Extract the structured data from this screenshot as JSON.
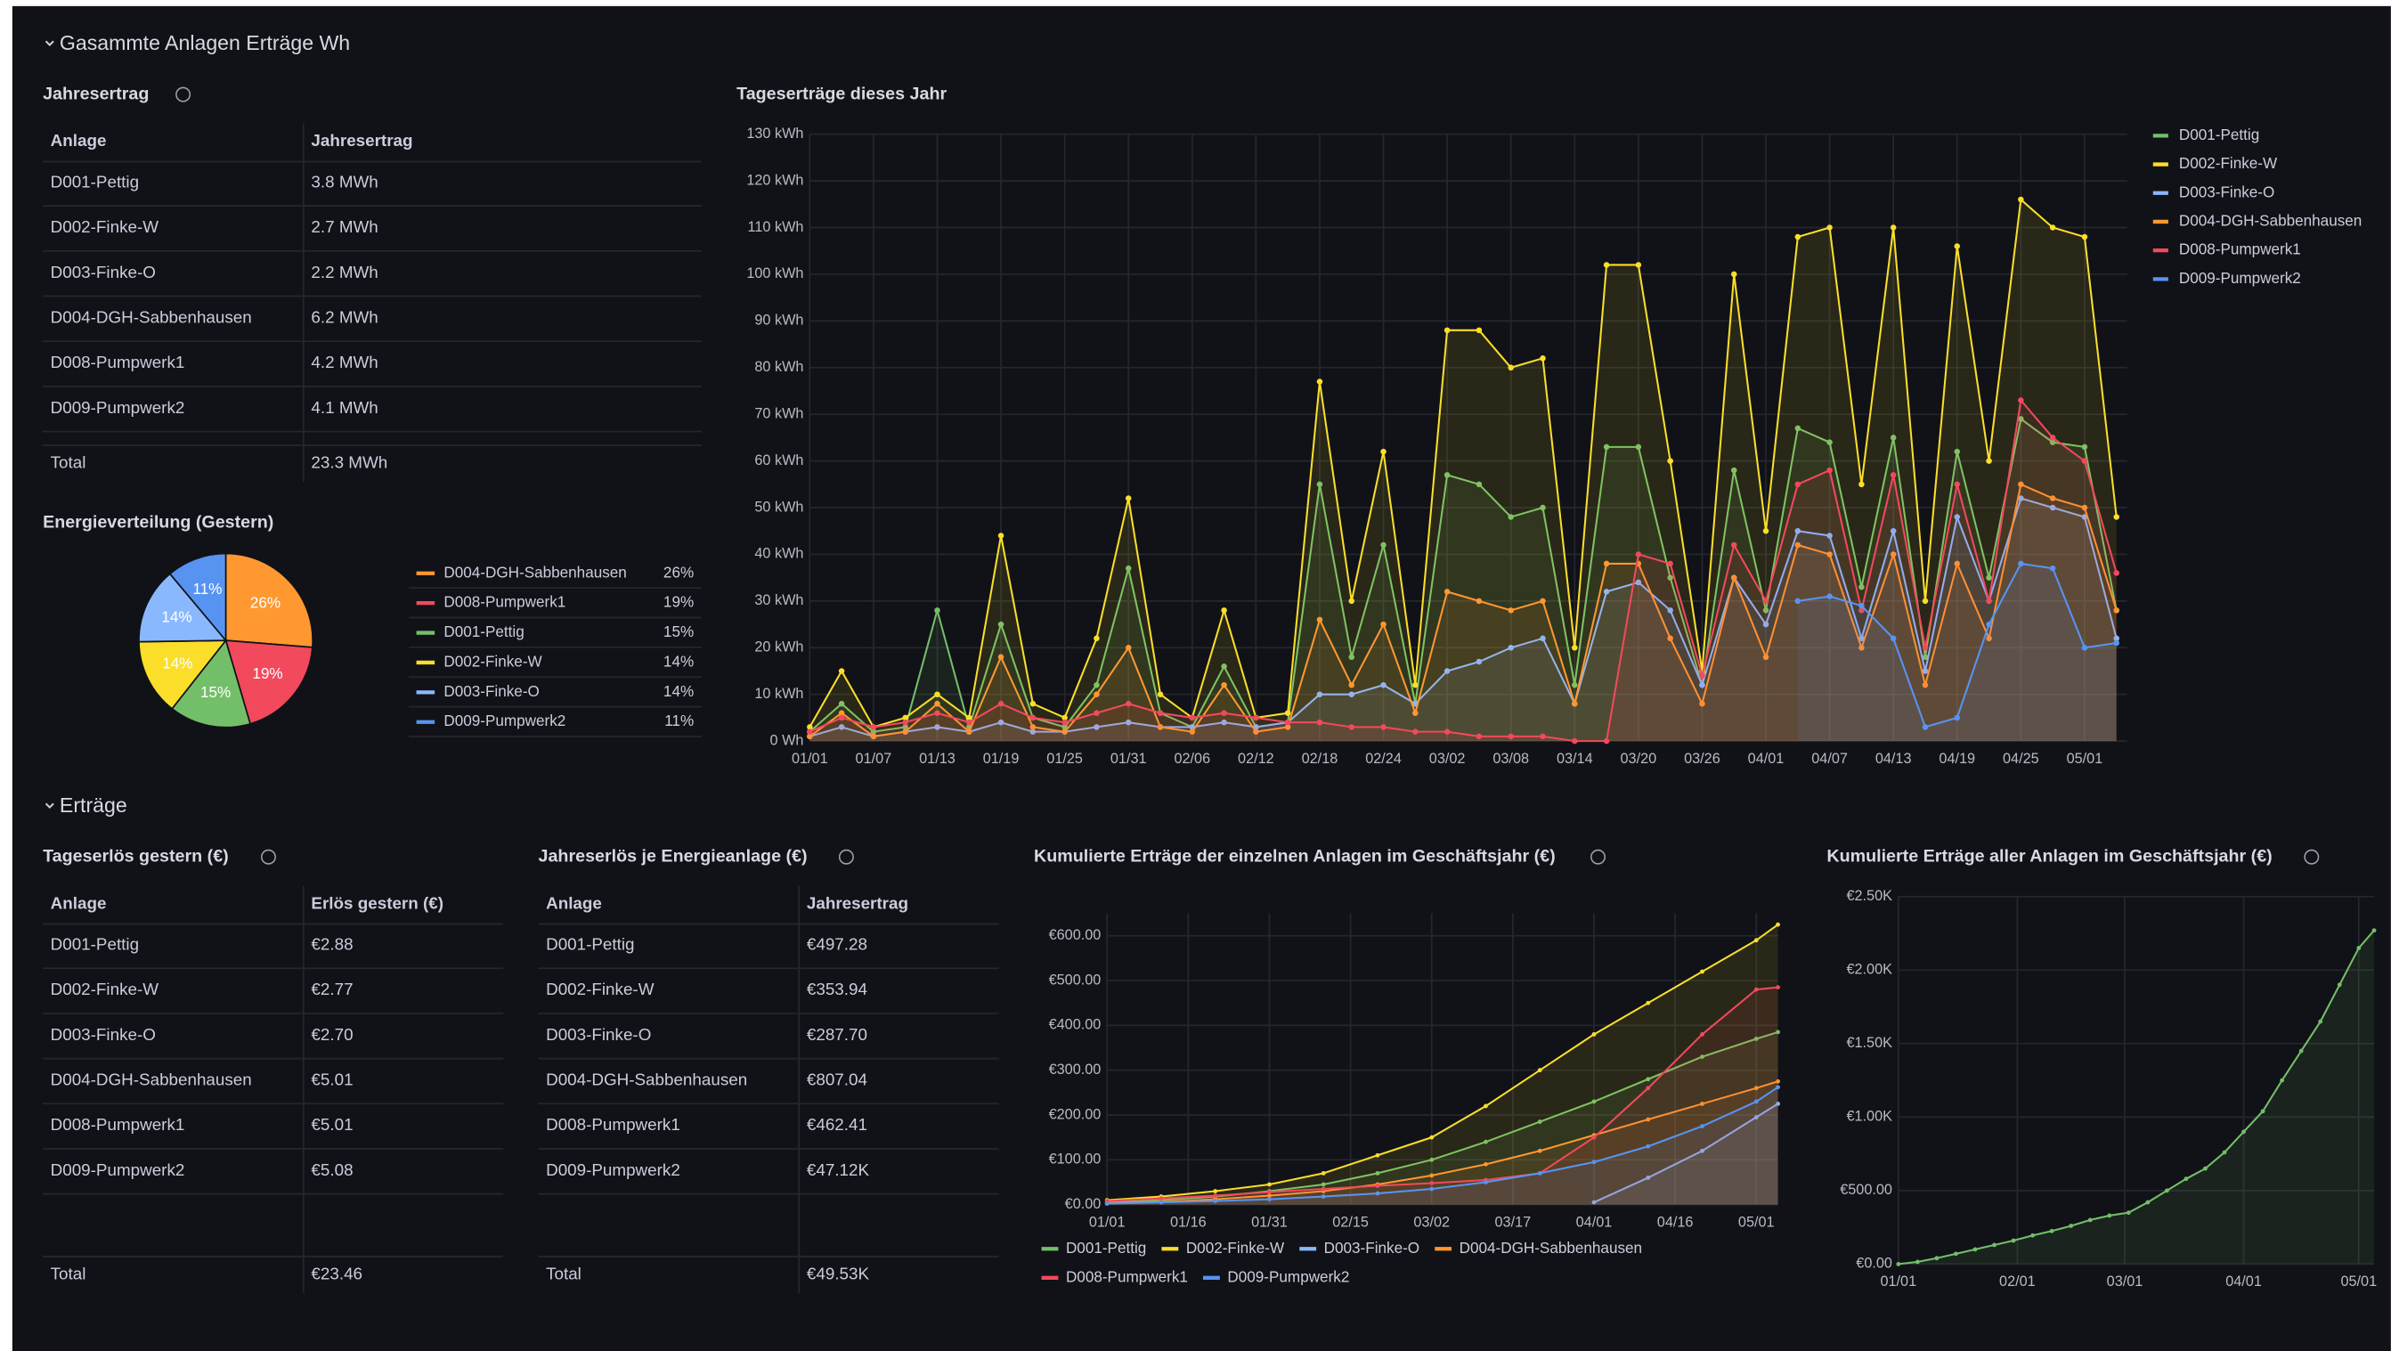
{
  "sections": [
    {
      "title": "Gasammte Anlagen Erträge Wh"
    },
    {
      "title": "Erträge"
    }
  ],
  "jahresertrag": {
    "title": "Jahresertrag",
    "header": [
      "Anlage",
      "Jahresertrag"
    ],
    "rows": [
      [
        "D001-Pettig",
        "3.8 MWh"
      ],
      [
        "D002-Finke-W",
        "2.7 MWh"
      ],
      [
        "D003-Finke-O",
        "2.2 MWh"
      ],
      [
        "D004-DGH-Sabbenhausen",
        "6.2 MWh"
      ],
      [
        "D008-Pumpwerk1",
        "4.2 MWh"
      ],
      [
        "D009-Pumpwerk2",
        "4.1 MWh"
      ]
    ],
    "total": [
      "Total",
      "23.3 MWh"
    ]
  },
  "tageserloes": {
    "title": "Tageserlös gestern (€)",
    "header": [
      "Anlage",
      "Erlös gestern (€)"
    ],
    "rows": [
      [
        "D001-Pettig",
        "€2.88"
      ],
      [
        "D002-Finke-W",
        "€2.77"
      ],
      [
        "D003-Finke-O",
        "€2.70"
      ],
      [
        "D004-DGH-Sabbenhausen",
        "€5.01"
      ],
      [
        "D008-Pumpwerk1",
        "€5.01"
      ],
      [
        "D009-Pumpwerk2",
        "€5.08"
      ]
    ],
    "total": [
      "Total",
      "€23.46"
    ]
  },
  "jahreserloes": {
    "title": "Jahreserlös je Energieanlage (€)",
    "header": [
      "Anlage",
      "Jahresertrag"
    ],
    "rows": [
      [
        "D001-Pettig",
        "€497.28"
      ],
      [
        "D002-Finke-W",
        "€353.94"
      ],
      [
        "D003-Finke-O",
        "€287.70"
      ],
      [
        "D004-DGH-Sabbenhausen",
        "€807.04"
      ],
      [
        "D008-Pumpwerk1",
        "€462.41"
      ],
      [
        "D009-Pumpwerk2",
        "€47.12K"
      ]
    ],
    "total": [
      "Total",
      "€49.53K"
    ]
  },
  "chart_data": [
    {
      "type": "pie",
      "title": "Energieverteilung (Gestern)",
      "categories": [
        "D004-DGH-Sabbenhausen",
        "D008-Pumpwerk1",
        "D001-Pettig",
        "D002-Finke-W",
        "D003-Finke-O",
        "D009-Pumpwerk2"
      ],
      "values": [
        26,
        19,
        15,
        14,
        14,
        11
      ],
      "value_labels": [
        "26%",
        "19%",
        "15%",
        "14%",
        "14%",
        "11%"
      ],
      "colors": [
        "#ff9830",
        "#f2495c",
        "#73bf69",
        "#fade2a",
        "#8ab8ff",
        "#5794f2"
      ],
      "legend": "right"
    },
    {
      "type": "line",
      "title": "Tageserträge dieses Jahr",
      "legend": "right",
      "grid": true,
      "x": [
        0,
        3,
        6,
        9,
        12,
        15,
        18,
        21,
        24,
        27,
        30,
        33,
        36,
        39,
        42,
        45,
        48,
        51,
        54,
        57,
        60,
        63,
        66,
        69,
        72,
        75,
        78,
        81,
        84,
        87,
        90,
        93,
        96,
        99,
        102,
        105,
        108,
        111,
        114,
        117,
        120,
        123
      ],
      "xlim": [
        0,
        124
      ],
      "xticks": [
        {
          "value": 0,
          "label": "01/01"
        },
        {
          "value": 6,
          "label": "01/07"
        },
        {
          "value": 12,
          "label": "01/13"
        },
        {
          "value": 18,
          "label": "01/19"
        },
        {
          "value": 24,
          "label": "01/25"
        },
        {
          "value": 30,
          "label": "01/31"
        },
        {
          "value": 36,
          "label": "02/06"
        },
        {
          "value": 42,
          "label": "02/12"
        },
        {
          "value": 48,
          "label": "02/18"
        },
        {
          "value": 54,
          "label": "02/24"
        },
        {
          "value": 60,
          "label": "03/02"
        },
        {
          "value": 66,
          "label": "03/08"
        },
        {
          "value": 72,
          "label": "03/14"
        },
        {
          "value": 78,
          "label": "03/20"
        },
        {
          "value": 84,
          "label": "03/26"
        },
        {
          "value": 90,
          "label": "04/01"
        },
        {
          "value": 96,
          "label": "04/07"
        },
        {
          "value": 102,
          "label": "04/13"
        },
        {
          "value": 108,
          "label": "04/19"
        },
        {
          "value": 114,
          "label": "04/25"
        },
        {
          "value": 120,
          "label": "05/01"
        }
      ],
      "ylim": [
        0,
        130
      ],
      "yticks": [
        {
          "value": 0,
          "label": "0 Wh"
        },
        {
          "value": 10,
          "label": "10 kWh"
        },
        {
          "value": 20,
          "label": "20 kWh"
        },
        {
          "value": 30,
          "label": "30 kWh"
        },
        {
          "value": 40,
          "label": "40 kWh"
        },
        {
          "value": 50,
          "label": "50 kWh"
        },
        {
          "value": 60,
          "label": "60 kWh"
        },
        {
          "value": 70,
          "label": "70 kWh"
        },
        {
          "value": 80,
          "label": "80 kWh"
        },
        {
          "value": 90,
          "label": "90 kWh"
        },
        {
          "value": 100,
          "label": "100 kWh"
        },
        {
          "value": 110,
          "label": "110 kWh"
        },
        {
          "value": 120,
          "label": "120 kWh"
        },
        {
          "value": 130,
          "label": "130 kWh"
        }
      ],
      "series": [
        {
          "name": "D001-Pettig",
          "color": "#73bf69",
          "values": [
            2,
            8,
            2,
            3,
            28,
            3,
            25,
            5,
            3,
            12,
            37,
            6,
            3,
            16,
            3,
            4,
            55,
            18,
            42,
            8,
            57,
            55,
            48,
            50,
            12,
            63,
            63,
            35,
            12,
            58,
            28,
            67,
            64,
            33,
            65,
            18,
            62,
            35,
            69,
            64,
            63,
            28
          ]
        },
        {
          "name": "D002-Finke-W",
          "color": "#fade2a",
          "values": [
            3,
            15,
            3,
            5,
            10,
            5,
            44,
            8,
            5,
            22,
            52,
            10,
            5,
            28,
            5,
            6,
            77,
            30,
            62,
            12,
            88,
            88,
            80,
            82,
            20,
            102,
            102,
            60,
            15,
            100,
            45,
            108,
            110,
            55,
            110,
            30,
            106,
            60,
            116,
            110,
            108,
            48
          ]
        },
        {
          "name": "D003-Finke-O",
          "color": "#8ab8ff",
          "values": [
            1,
            3,
            1,
            2,
            3,
            2,
            4,
            2,
            2,
            3,
            4,
            3,
            3,
            4,
            3,
            4,
            10,
            10,
            12,
            8,
            15,
            17,
            20,
            22,
            8,
            32,
            34,
            28,
            12,
            35,
            25,
            45,
            44,
            22,
            45,
            15,
            48,
            30,
            52,
            50,
            48,
            22
          ]
        },
        {
          "name": "D004-DGH-Sabbenhausen",
          "color": "#ff9830",
          "values": [
            1,
            6,
            1,
            2,
            8,
            2,
            18,
            3,
            2,
            10,
            20,
            3,
            2,
            12,
            2,
            3,
            26,
            12,
            25,
            6,
            32,
            30,
            28,
            30,
            8,
            38,
            38,
            22,
            8,
            35,
            18,
            42,
            40,
            20,
            40,
            12,
            38,
            22,
            55,
            52,
            50,
            28
          ]
        },
        {
          "name": "D008-Pumpwerk1",
          "color": "#f2495c",
          "values": [
            2,
            5,
            3,
            4,
            6,
            4,
            8,
            5,
            4,
            6,
            8,
            6,
            5,
            6,
            5,
            4,
            4,
            3,
            3,
            2,
            2,
            1,
            1,
            1,
            0,
            0,
            40,
            38,
            14,
            42,
            30,
            55,
            58,
            28,
            57,
            20,
            55,
            30,
            73,
            65,
            60,
            36
          ]
        },
        {
          "name": "D009-Pumpwerk2",
          "color": "#5794f2",
          "values": [
            null,
            null,
            null,
            null,
            null,
            null,
            null,
            null,
            null,
            null,
            null,
            null,
            null,
            null,
            null,
            null,
            null,
            null,
            null,
            null,
            null,
            null,
            null,
            null,
            null,
            null,
            null,
            null,
            null,
            null,
            null,
            30,
            31,
            29,
            22,
            3,
            5,
            25,
            38,
            37,
            20,
            21
          ]
        }
      ]
    },
    {
      "type": "line",
      "title": "Kumulierte Erträge der einzelnen Anlagen im Geschäftsjahr (€)",
      "legend": "bottom",
      "grid": true,
      "x": [
        0,
        10,
        20,
        30,
        40,
        50,
        60,
        70,
        80,
        90,
        100,
        110,
        120,
        124
      ],
      "xlim": [
        0,
        124
      ],
      "xticks": [
        {
          "value": 0,
          "label": "01/01"
        },
        {
          "value": 15,
          "label": "01/16"
        },
        {
          "value": 30,
          "label": "01/31"
        },
        {
          "value": 45,
          "label": "02/15"
        },
        {
          "value": 60,
          "label": "03/02"
        },
        {
          "value": 75,
          "label": "03/17"
        },
        {
          "value": 90,
          "label": "04/01"
        },
        {
          "value": 105,
          "label": "04/16"
        },
        {
          "value": 120,
          "label": "05/01"
        }
      ],
      "ylim": [
        0,
        650
      ],
      "yticks": [
        {
          "value": 0,
          "label": "€0.00"
        },
        {
          "value": 100,
          "label": "€100.00"
        },
        {
          "value": 200,
          "label": "€200.00"
        },
        {
          "value": 300,
          "label": "€300.00"
        },
        {
          "value": 400,
          "label": "€400.00"
        },
        {
          "value": 500,
          "label": "€500.00"
        },
        {
          "value": 600,
          "label": "€600.00"
        }
      ],
      "series": [
        {
          "name": "D001-Pettig",
          "color": "#73bf69",
          "values": [
            5,
            10,
            18,
            30,
            45,
            70,
            100,
            140,
            185,
            230,
            280,
            330,
            370,
            385
          ]
        },
        {
          "name": "D002-Finke-W",
          "color": "#fade2a",
          "values": [
            10,
            18,
            30,
            45,
            70,
            110,
            150,
            220,
            300,
            380,
            450,
            520,
            590,
            625
          ]
        },
        {
          "name": "D003-Finke-O",
          "color": "#8ab8ff",
          "values": [
            null,
            null,
            null,
            null,
            null,
            null,
            null,
            null,
            null,
            5,
            60,
            120,
            195,
            225
          ]
        },
        {
          "name": "D004-DGH-Sabbenhausen",
          "color": "#ff9830",
          "values": [
            3,
            6,
            12,
            20,
            30,
            45,
            65,
            90,
            120,
            155,
            190,
            225,
            260,
            275
          ]
        },
        {
          "name": "D008-Pumpwerk1",
          "color": "#f2495c",
          "values": [
            8,
            14,
            20,
            28,
            35,
            42,
            48,
            55,
            70,
            150,
            260,
            380,
            480,
            485
          ]
        },
        {
          "name": "D009-Pumpwerk2",
          "color": "#5794f2",
          "values": [
            2,
            5,
            8,
            12,
            18,
            25,
            35,
            50,
            70,
            95,
            130,
            175,
            230,
            262
          ]
        }
      ]
    },
    {
      "type": "line",
      "title": "Kumulierte Erträge aller Anlagen im Geschäftsjahr (€)",
      "grid": true,
      "x": [
        0,
        5,
        10,
        15,
        20,
        25,
        30,
        35,
        40,
        45,
        50,
        55,
        60,
        65,
        70,
        75,
        80,
        85,
        90,
        95,
        100,
        105,
        110,
        115,
        120,
        124
      ],
      "xlim": [
        0,
        124
      ],
      "xticks": [
        {
          "value": 0,
          "label": "01/01"
        },
        {
          "value": 31,
          "label": "02/01"
        },
        {
          "value": 59,
          "label": "03/01"
        },
        {
          "value": 90,
          "label": "04/01"
        },
        {
          "value": 120,
          "label": "05/01"
        }
      ],
      "ylim": [
        0,
        2500
      ],
      "yticks": [
        {
          "value": 0,
          "label": "€0.00"
        },
        {
          "value": 500,
          "label": "€500.00"
        },
        {
          "value": 1000,
          "label": "€1.00K"
        },
        {
          "value": 1500,
          "label": "€1.50K"
        },
        {
          "value": 2000,
          "label": "€2.00K"
        },
        {
          "value": 2500,
          "label": "€2.50K"
        }
      ],
      "series": [
        {
          "color": "#73bf69",
          "values": [
            0,
            15,
            40,
            70,
            100,
            130,
            160,
            195,
            225,
            260,
            300,
            330,
            350,
            420,
            500,
            580,
            650,
            760,
            900,
            1040,
            1250,
            1450,
            1650,
            1900,
            2150,
            2270
          ]
        }
      ]
    }
  ]
}
